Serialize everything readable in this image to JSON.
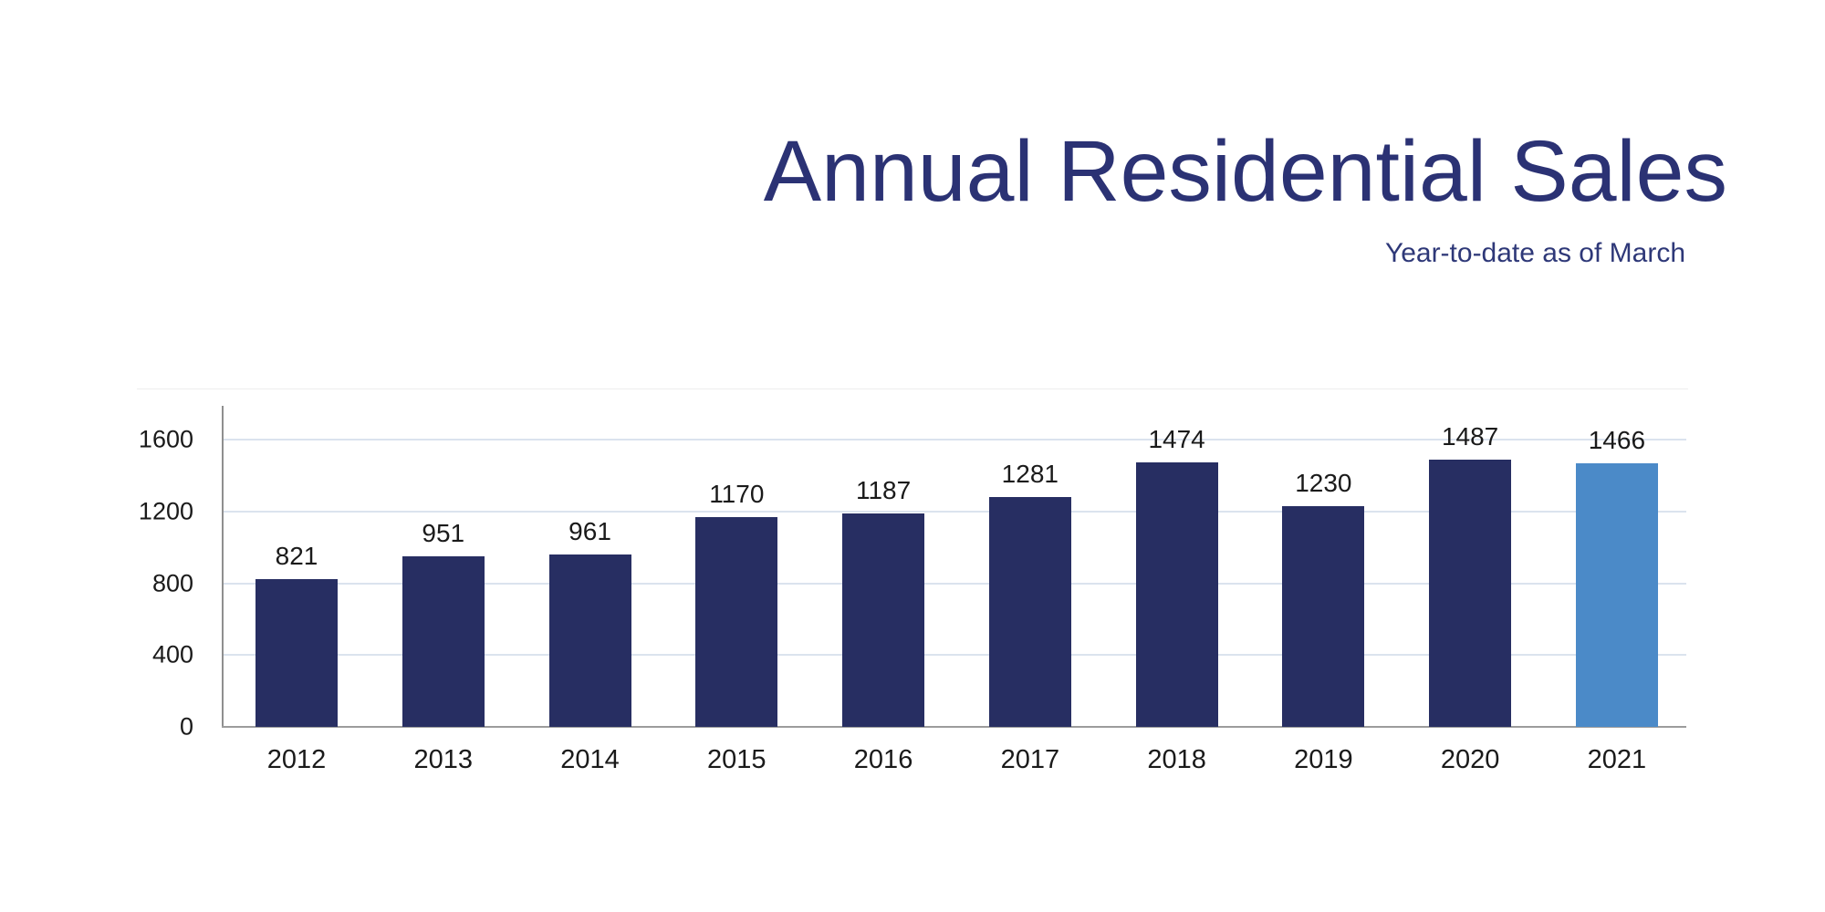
{
  "header": {
    "title": "Annual Residential Sales",
    "subtitle": "Year-to-date as of March"
  },
  "chart_data": {
    "type": "bar",
    "title": "Annual Residential Sales",
    "subtitle": "Year-to-date as of March",
    "categories": [
      "2012",
      "2013",
      "2014",
      "2015",
      "2016",
      "2017",
      "2018",
      "2019",
      "2020",
      "2021"
    ],
    "values": [
      821,
      951,
      961,
      1170,
      1187,
      1281,
      1474,
      1230,
      1487,
      1466
    ],
    "data_labels": [
      "821",
      "951",
      "961",
      "1170",
      "1187",
      "1281",
      "1474",
      "1230",
      "1487",
      "1466"
    ],
    "highlight_category": "2021",
    "y_ticks": [
      0,
      400,
      800,
      1200,
      1600
    ],
    "ylim": [
      0,
      1880
    ],
    "xlabel": "",
    "ylabel": "",
    "grid": "horizontal-light",
    "legend": "none",
    "colors": {
      "bar": "#272e62",
      "highlight_bar": "#4b8ac8",
      "title_text": "#2b3274",
      "subtitle_text": "#2e3878",
      "grid_line": "#dbe3ee",
      "axis_line": "#8f8f8f",
      "baseline": "#9c9c9c",
      "label_text": "#1a1a1a"
    }
  }
}
